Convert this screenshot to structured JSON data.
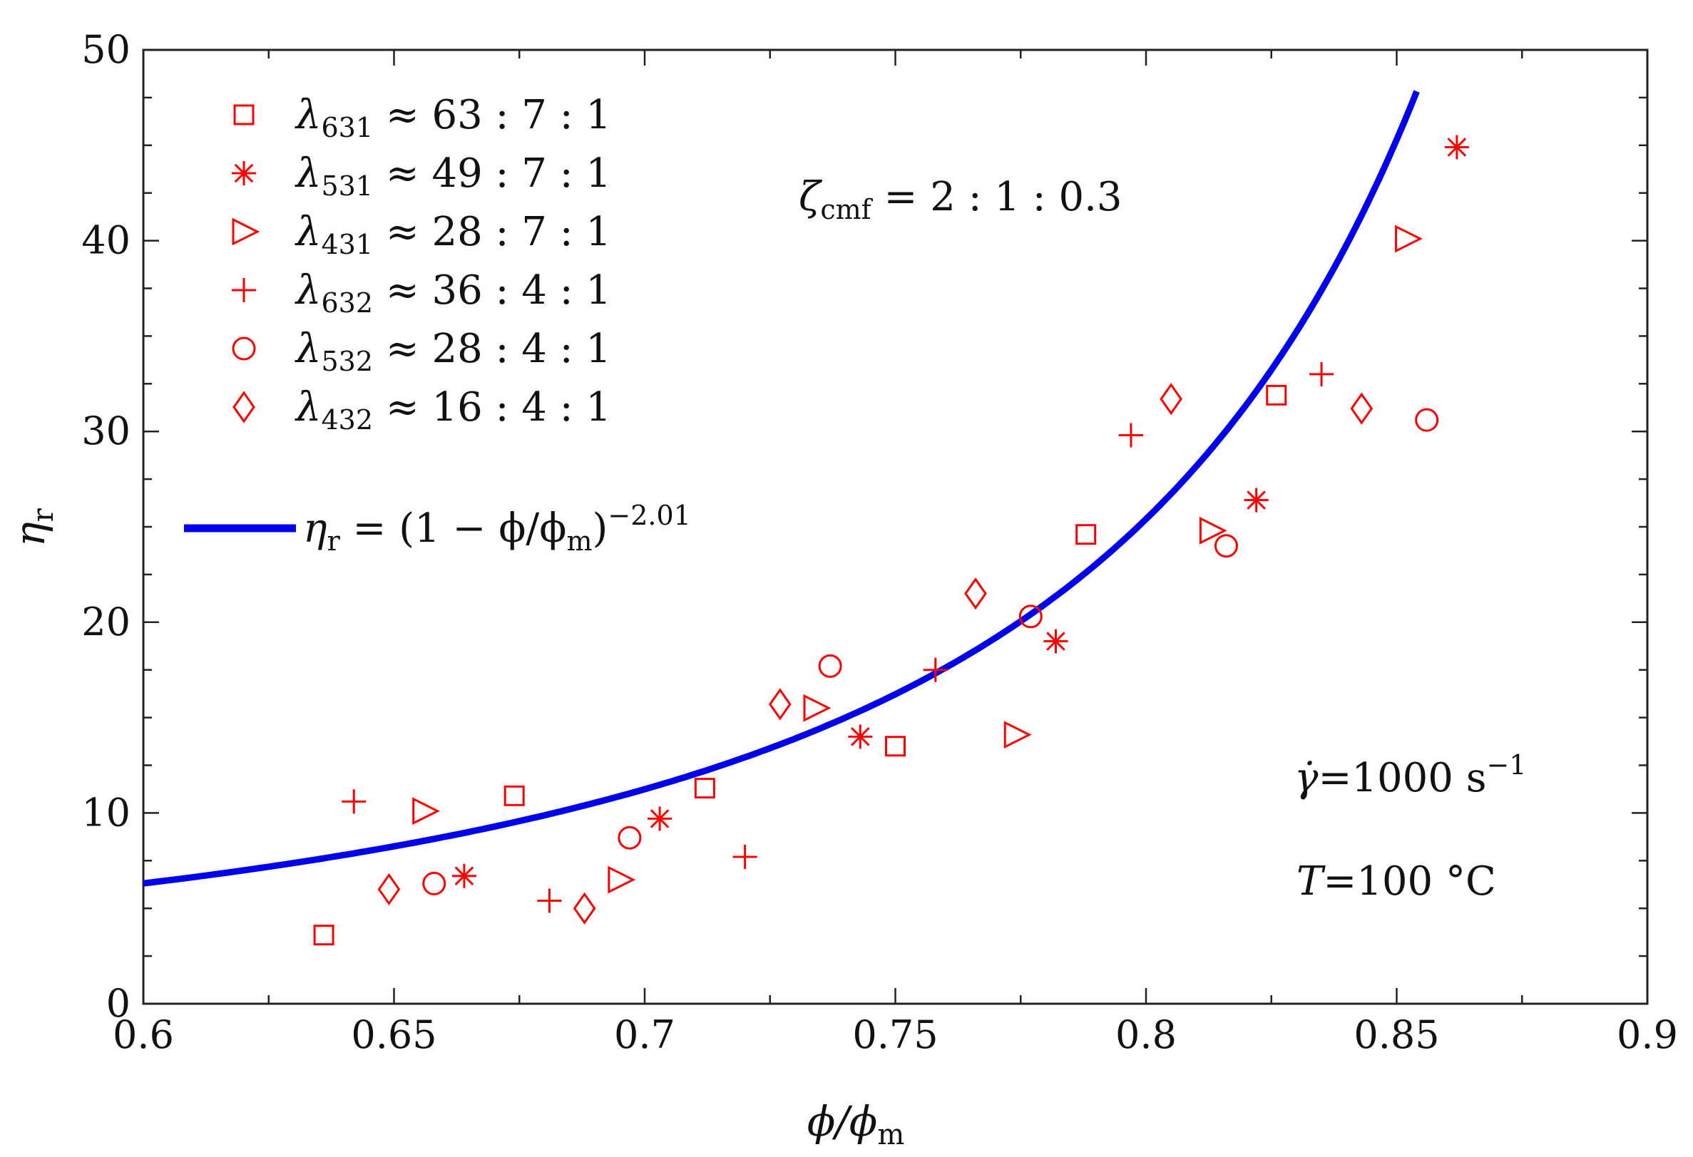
{
  "chart_data": {
    "type": "scatter",
    "title": "",
    "xlabel": "ϕ/ϕm",
    "ylabel": "ηr",
    "xlim": [
      0.6,
      0.9
    ],
    "ylim": [
      0,
      50
    ],
    "x_ticks": [
      0.6,
      0.65,
      0.7,
      0.75,
      0.8,
      0.85,
      0.9
    ],
    "x_tick_labels": [
      "0.6",
      "0.65",
      "0.7",
      "0.75",
      "0.8",
      "0.85",
      "0.9"
    ],
    "y_ticks": [
      0,
      10,
      20,
      30,
      40,
      50
    ],
    "y_tick_labels": [
      "0",
      "10",
      "20",
      "30",
      "40",
      "50"
    ],
    "grid": false,
    "legend_position": "top-left",
    "series": [
      {
        "name": "λ631 ≈ 63 : 7 : 1",
        "marker": "square",
        "color": "#ff0000",
        "x": [
          0.636,
          0.674,
          0.712,
          0.75,
          0.788,
          0.826
        ],
        "y": [
          3.6,
          10.9,
          11.3,
          13.5,
          24.6,
          31.9
        ]
      },
      {
        "name": "λ531 ≈ 49 : 7 : 1",
        "marker": "asterisk",
        "color": "#ff0000",
        "x": [
          0.664,
          0.703,
          0.743,
          0.782,
          0.822,
          0.862
        ],
        "y": [
          6.7,
          9.7,
          14.0,
          19.0,
          26.4,
          44.9
        ]
      },
      {
        "name": "λ431 ≈ 28 : 7 : 1",
        "marker": "triangle-right",
        "color": "#ff0000",
        "x": [
          0.656,
          0.695,
          0.734,
          0.774,
          0.813,
          0.852
        ],
        "y": [
          10.1,
          6.5,
          15.5,
          14.1,
          24.8,
          40.1
        ]
      },
      {
        "name": "λ632 ≈ 36 : 4 : 1",
        "marker": "plus",
        "color": "#ff0000",
        "x": [
          0.642,
          0.681,
          0.72,
          0.758,
          0.797,
          0.835
        ],
        "y": [
          10.6,
          5.4,
          7.7,
          17.5,
          29.8,
          33.0
        ]
      },
      {
        "name": "λ532 ≈ 28 : 4 : 1",
        "marker": "circle",
        "color": "#ff0000",
        "x": [
          0.658,
          0.697,
          0.737,
          0.777,
          0.816,
          0.856
        ],
        "y": [
          6.3,
          8.7,
          17.7,
          20.3,
          24.0,
          30.6
        ]
      },
      {
        "name": "λ432 ≈ 16 : 4 : 1",
        "marker": "diamond",
        "color": "#ff0000",
        "x": [
          0.649,
          0.688,
          0.727,
          0.766,
          0.805,
          0.843
        ],
        "y": [
          6.0,
          5.0,
          15.7,
          21.5,
          31.7,
          31.2
        ]
      }
    ],
    "fit_curve": {
      "name": "ηr = (1 − ϕ/ϕm)−2.01",
      "equation": "eta_r = (1 - phi/phi_m)^(-2.01)",
      "exponent": -2.01,
      "x_range": [
        0.6,
        0.854
      ],
      "color": "#0000ee"
    },
    "annotations": [
      {
        "id": "zeta",
        "text": "ζcmf = 2 : 1 : 0.3"
      },
      {
        "id": "shear",
        "text": "γ̇=1000 s−1"
      },
      {
        "id": "temp",
        "text": "T=100 °C"
      }
    ]
  },
  "text": {
    "xlabel_main": "ϕ/ϕ",
    "xlabel_sub": "m",
    "ylabel_main": "η",
    "ylabel_sub": "r",
    "legend": [
      {
        "sym": "λ",
        "sub": "631",
        "rest": " ≈ 63 : 7 : 1"
      },
      {
        "sym": "λ",
        "sub": "531",
        "rest": " ≈ 49 : 7 : 1"
      },
      {
        "sym": "λ",
        "sub": "431",
        "rest": " ≈ 28 : 7 : 1"
      },
      {
        "sym": "λ",
        "sub": "632",
        "rest": " ≈ 36 : 4 : 1"
      },
      {
        "sym": "λ",
        "sub": "532",
        "rest": " ≈ 28 : 4 : 1"
      },
      {
        "sym": "λ",
        "sub": "432",
        "rest": " ≈ 16 : 4 : 1"
      }
    ],
    "fit_label": {
      "eta": "η",
      "eta_sub": "r",
      "mid": " = (1 − ϕ/ϕ",
      "m_sub": "m",
      "close": ")",
      "exp": "−2.01"
    },
    "zeta": {
      "sym": "ζ",
      "sub": "cmf",
      "rest": " = 2 : 1 : 0.3"
    },
    "shear": {
      "sym": "γ̇",
      "rest": "=1000 s",
      "exp": "−1"
    },
    "temp": {
      "sym": "T",
      "rest": "=100 °C"
    }
  }
}
